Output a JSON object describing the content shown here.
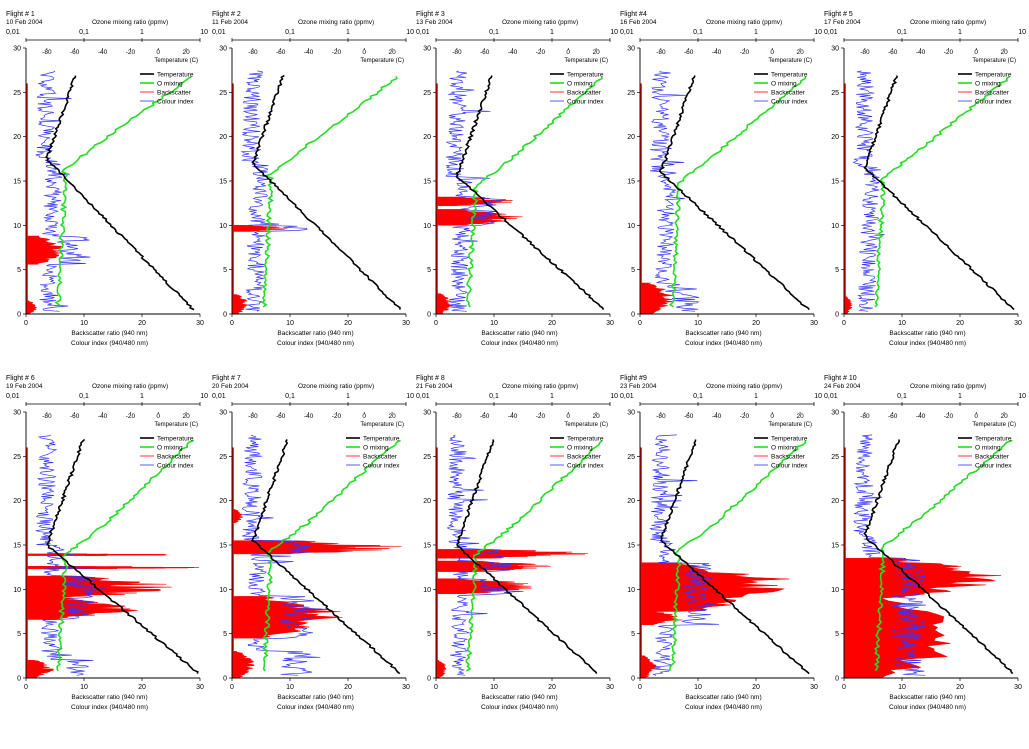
{
  "chart_data": [
    {
      "type": "line",
      "flight": "Flight # 1",
      "date": "10 Feb 2004",
      "top_label": "Ozone mixing ratio (ppmv)",
      "temp_label": "Temperature (C)",
      "xlabel": [
        "Backscatter ratio (940 nm)",
        "Colour index (940/480 nm)"
      ],
      "ozone_ticks": [
        "0,01",
        "0,1",
        "1",
        "10"
      ],
      "temp_ticks": [
        "-80",
        "-60",
        "-40",
        "-20",
        "0",
        "20"
      ],
      "bottom_ticks": [
        "0",
        "10",
        "20",
        "30"
      ],
      "y_ticks": [
        "0",
        "5",
        "10",
        "15",
        "20",
        "25",
        "30"
      ],
      "legend": [
        "Temperature",
        "O mixing",
        "Backscatter",
        "Colour index"
      ],
      "colors": {
        "temperature": "#000000",
        "ozone": "#22dd22",
        "backscatter": "#ff0000",
        "colour_index": "#3333ff"
      },
      "backscatter_layers": [
        {
          "bottom": 5.6,
          "top": 8.8,
          "max": 7
        },
        {
          "bottom": 0,
          "top": 1.5,
          "max": 2
        }
      ],
      "tropopause_km": 17.5,
      "surface_temp_c": 25,
      "cloud_ci": 7
    },
    {
      "type": "line",
      "flight": "Flight # 2",
      "date": "11 Feb 2004",
      "top_label": "Ozone mixing ratio (ppmv)",
      "temp_label": "Temperature (C)",
      "xlabel": [
        "Backscatter ratio (940 nm)",
        "Colour index (940/480 nm)"
      ],
      "ozone_ticks": [
        "0,01",
        "0,1",
        "1",
        "10"
      ],
      "temp_ticks": [
        "-80",
        "-60",
        "-40",
        "-20",
        "0",
        "20"
      ],
      "bottom_ticks": [
        "0",
        "10",
        "20",
        "30"
      ],
      "y_ticks": [
        "0",
        "5",
        "10",
        "15",
        "20",
        "25",
        "30"
      ],
      "legend": [],
      "colors": {
        "temperature": "#000000",
        "ozone": "#22dd22",
        "backscatter": "#ff0000",
        "colour_index": "#3333ff"
      },
      "backscatter_layers": [
        {
          "bottom": 9.3,
          "top": 10.0,
          "max": 10
        },
        {
          "bottom": 0,
          "top": 2.2,
          "max": 3
        }
      ],
      "tropopause_km": 17,
      "surface_temp_c": 26,
      "cloud_ci": 10
    },
    {
      "type": "line",
      "flight": "Flight # 3",
      "date": "13 Feb 2004",
      "top_label": "Ozone mixing ratio (ppmv)",
      "temp_label": "Temperature (C)",
      "xlabel": [
        "Backscatter ratio (940 nm)",
        "Colour index (940/480 nm)"
      ],
      "ozone_ticks": [
        "0,01",
        "0,1",
        "1",
        "10"
      ],
      "temp_ticks": [
        "-80",
        "-60",
        "-40",
        "-20",
        "0",
        "20"
      ],
      "bottom_ticks": [
        "0",
        "10",
        "20",
        "30"
      ],
      "y_ticks": [
        "0",
        "5",
        "10",
        "15",
        "20",
        "25",
        "30"
      ],
      "legend": [
        "Temperature",
        "O mixing",
        "Backscatter",
        "Colour index"
      ],
      "colors": {
        "temperature": "#000000",
        "ozone": "#22dd22",
        "backscatter": "#ff0000",
        "colour_index": "#3333ff"
      },
      "backscatter_layers": [
        {
          "bottom": 12.2,
          "top": 13.2,
          "max": 14
        },
        {
          "bottom": 10.0,
          "top": 11.8,
          "max": 15
        },
        {
          "bottom": 0,
          "top": 2.3,
          "max": 3
        }
      ],
      "tropopause_km": 15.5,
      "surface_temp_c": 26,
      "cloud_ci": 7
    },
    {
      "type": "line",
      "flight": "Flight #4",
      "date": "16 Feb 2004",
      "top_label": "Ozone mixing ratio (ppmv)",
      "temp_label": "Temperature (C)",
      "xlabel": [
        "Backscatter ratio (940 nm)",
        "Colour index (940/480 nm)"
      ],
      "ozone_ticks": [
        "0,01",
        "0,1",
        "1",
        "10"
      ],
      "temp_ticks": [
        "-80",
        "-60",
        "-40",
        "-20",
        "0",
        "20"
      ],
      "bottom_ticks": [
        "0",
        "10",
        "20",
        "30"
      ],
      "y_ticks": [
        "0",
        "5",
        "10",
        "15",
        "20",
        "25",
        "30"
      ],
      "legend": [
        "Temperature",
        "O mixing",
        "Backscatter",
        "Colour index"
      ],
      "colors": {
        "temperature": "#000000",
        "ozone": "#22dd22",
        "backscatter": "#ff0000",
        "colour_index": "#3333ff"
      },
      "backscatter_layers": [
        {
          "bottom": 0,
          "top": 3.5,
          "max": 6
        }
      ],
      "tropopause_km": 16,
      "surface_temp_c": 26,
      "cloud_ci": 6
    },
    {
      "type": "line",
      "flight": "Flight # 5",
      "date": "17 Feb 2004",
      "top_label": "Ozone mixing ratio (ppmv)",
      "temp_label": "Temperature (C)",
      "xlabel": [
        "Backscatter ratio (940 nm)",
        "Colour index (940/480 nm)"
      ],
      "ozone_ticks": [
        "0,01",
        "0,1",
        "1",
        "10"
      ],
      "temp_ticks": [
        "-80",
        "-60",
        "-40",
        "-20",
        "0",
        "20"
      ],
      "bottom_ticks": [
        "0",
        "10",
        "20",
        "30"
      ],
      "y_ticks": [
        "0",
        "5",
        "10",
        "15",
        "20",
        "25",
        "30"
      ],
      "legend": [
        "Temperature",
        "O mixing",
        "Backscatter",
        "Colour index"
      ],
      "colors": {
        "temperature": "#000000",
        "ozone": "#22dd22",
        "backscatter": "#ff0000",
        "colour_index": "#3333ff"
      },
      "backscatter_layers": [
        {
          "bottom": 0,
          "top": 2.0,
          "max": 1.5
        }
      ],
      "tropopause_km": 16.5,
      "surface_temp_c": 27,
      "cloud_ci": 6
    },
    {
      "type": "line",
      "flight": "Flight # 6",
      "date": "19 Feb 2004",
      "top_label": "Ozone mixing ratio (ppmv)",
      "temp_label": "Temperature (C)",
      "xlabel": [
        "Backscatter ratio (940 nm)",
        "Colour index (940/480 nm)"
      ],
      "ozone_ticks": [
        "0,01",
        "0,1",
        "1",
        "10"
      ],
      "temp_ticks": [
        "-80",
        "-60",
        "-40",
        "-20",
        "0",
        "20"
      ],
      "bottom_ticks": [
        "0",
        "10",
        "20",
        "30"
      ],
      "y_ticks": [
        "0",
        "5",
        "10",
        "15",
        "20",
        "25",
        "30"
      ],
      "legend": [
        "Temperature",
        "O mixing",
        "Backscatter",
        "Colour index"
      ],
      "colors": {
        "temperature": "#000000",
        "ozone": "#22dd22",
        "backscatter": "#ff0000",
        "colour_index": "#3333ff"
      },
      "backscatter_layers": [
        {
          "bottom": 13.8,
          "top": 14.0,
          "max": 30
        },
        {
          "bottom": 12.3,
          "top": 12.6,
          "max": 30
        },
        {
          "bottom": 9.0,
          "top": 11.5,
          "max": 26
        },
        {
          "bottom": 6.6,
          "top": 9.0,
          "max": 20
        },
        {
          "bottom": 0,
          "top": 2.0,
          "max": 5
        }
      ],
      "tropopause_km": 15,
      "surface_temp_c": 29,
      "cloud_ci": 8
    },
    {
      "type": "line",
      "flight": "Flight # 7",
      "date": "20 Feb 2004",
      "top_label": "Ozone mixing ratio (ppmv)",
      "temp_label": "Temperature (C)",
      "xlabel": [
        "Backscatter ratio (940 nm)",
        "Colour index (940/480 nm)"
      ],
      "ozone_ticks": [
        "0,01",
        "0,1",
        "1",
        "10"
      ],
      "temp_ticks": [
        "-80",
        "-60",
        "-40",
        "-20",
        "0",
        "20"
      ],
      "bottom_ticks": [
        "0",
        "10",
        "20",
        "30"
      ],
      "y_ticks": [
        "0",
        "5",
        "10",
        "15",
        "20",
        "25",
        "30"
      ],
      "legend": [
        "Temperature",
        "O mixing",
        "Backscatter",
        "Colour index"
      ],
      "colors": {
        "temperature": "#000000",
        "ozone": "#22dd22",
        "backscatter": "#ff0000",
        "colour_index": "#3333ff"
      },
      "backscatter_layers": [
        {
          "bottom": 14.0,
          "top": 15.5,
          "max": 30
        },
        {
          "bottom": 4.5,
          "top": 9.2,
          "max": 20
        },
        {
          "bottom": 17.5,
          "top": 19.0,
          "max": 2
        },
        {
          "bottom": 0,
          "top": 3.0,
          "max": 4
        }
      ],
      "tropopause_km": 15.5,
      "surface_temp_c": 26,
      "cloud_ci": 10
    },
    {
      "type": "line",
      "flight": "Flight # 8",
      "date": "21 Feb 2004",
      "top_label": "Ozone mixing ratio (ppmv)",
      "temp_label": "Temperature (C)",
      "xlabel": [
        "Backscatter ratio (940 nm)",
        "Colour index (940/480 nm)"
      ],
      "ozone_ticks": [
        "0,01",
        "0,1",
        "1",
        "10"
      ],
      "temp_ticks": [
        "-80",
        "-60",
        "-40",
        "-20",
        "0",
        "20"
      ],
      "bottom_ticks": [
        "0",
        "10",
        "20",
        "30"
      ],
      "y_ticks": [
        "0",
        "5",
        "10",
        "15",
        "20",
        "25",
        "30"
      ],
      "legend": [
        "Temperature",
        "O mixing",
        "Backscatter",
        "Colour index"
      ],
      "colors": {
        "temperature": "#000000",
        "ozone": "#22dd22",
        "backscatter": "#ff0000",
        "colour_index": "#3333ff"
      },
      "backscatter_layers": [
        {
          "bottom": 13.5,
          "top": 14.5,
          "max": 29
        },
        {
          "bottom": 12.0,
          "top": 13.2,
          "max": 20
        },
        {
          "bottom": 9.5,
          "top": 11.2,
          "max": 18
        },
        {
          "bottom": 0,
          "top": 2.0,
          "max": 2
        }
      ],
      "tropopause_km": 15,
      "surface_temp_c": 21,
      "cloud_ci": 9
    },
    {
      "type": "line",
      "flight": "Flight #9",
      "date": "23 Feb 2004",
      "top_label": "Ozone mixing ratio (ppmv)",
      "temp_label": "Temperature (C)",
      "xlabel": [
        "Backscatter ratio (940 nm)",
        "Colour index (940/480 nm)"
      ],
      "ozone_ticks": [
        "0,01",
        "0,1",
        "1",
        "10"
      ],
      "temp_ticks": [
        "-80",
        "-60",
        "-40",
        "-20",
        "0",
        "20"
      ],
      "bottom_ticks": [
        "0",
        "10",
        "20",
        "30"
      ],
      "y_ticks": [
        "0",
        "5",
        "10",
        "15",
        "20",
        "25",
        "30"
      ],
      "legend": [
        "Temperature",
        "O mixing",
        "Backscatter",
        "Colour index"
      ],
      "colors": {
        "temperature": "#000000",
        "ozone": "#22dd22",
        "backscatter": "#ff0000",
        "colour_index": "#3333ff"
      },
      "backscatter_layers": [
        {
          "bottom": 7.5,
          "top": 13.0,
          "max": 29
        },
        {
          "bottom": 6.0,
          "top": 7.5,
          "max": 8
        },
        {
          "bottom": 0,
          "top": 2.5,
          "max": 3
        }
      ],
      "tropopause_km": 15.5,
      "surface_temp_c": 26,
      "cloud_ci": 9
    },
    {
      "type": "line",
      "flight": "Flight # 10",
      "date": "24 Feb 2004",
      "top_label": "Ozone mixing ratio (ppmv)",
      "temp_label": "Temperature (C)",
      "xlabel": [
        "Backscatter ratio (940 nm)",
        "Colour index (940/480 nm)"
      ],
      "ozone_ticks": [
        "0,01",
        "0,1",
        "1",
        "10"
      ],
      "temp_ticks": [
        "-80",
        "-60",
        "-40",
        "-20",
        "0",
        "20"
      ],
      "bottom_ticks": [
        "0",
        "10",
        "20",
        "30"
      ],
      "y_ticks": [
        "0",
        "5",
        "10",
        "15",
        "20",
        "25",
        "30"
      ],
      "legend": [
        "Temperature",
        "O mixing",
        "Backscatter",
        "Colour index"
      ],
      "colors": {
        "temperature": "#000000",
        "ozone": "#22dd22",
        "backscatter": "#ff0000",
        "colour_index": "#3333ff"
      },
      "backscatter_layers": [
        {
          "bottom": 9.0,
          "top": 13.5,
          "max": 30
        },
        {
          "bottom": 0,
          "top": 9.0,
          "max": 22
        }
      ],
      "tropopause_km": 16,
      "surface_temp_c": 27,
      "cloud_ci": 10
    }
  ]
}
